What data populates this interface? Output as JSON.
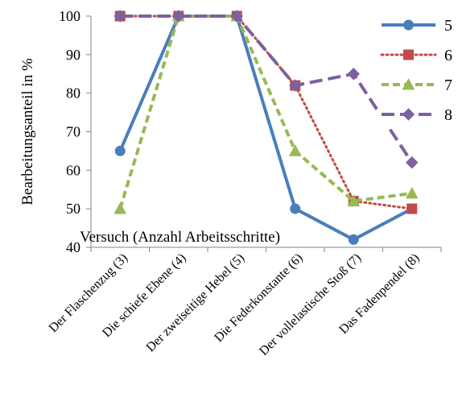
{
  "chart_data": {
    "type": "line",
    "title": "",
    "ylabel": "Bearbeitungsanteil in %",
    "xlabel": "Versuch (Anzahl Arbeitsschritte)",
    "ylim": [
      40,
      100
    ],
    "yticks": [
      40,
      50,
      60,
      70,
      80,
      90,
      100
    ],
    "grid": false,
    "legend_position": "top-right",
    "categories": [
      "Der Flaschenzug (3)",
      "Die schiefe Ebene (4)",
      "Der zweiseitige Hebel (5)",
      "Die Federkonstante (6)",
      "Der vollelastische Stoß (7)",
      "Das Fadenpendel (8)"
    ],
    "series": [
      {
        "name": "5",
        "values": [
          65,
          100,
          100,
          50,
          42,
          50
        ],
        "color": "#4a7ebb",
        "marker": "circle",
        "dash": "solid"
      },
      {
        "name": "6",
        "values": [
          100,
          100,
          100,
          82,
          52,
          50
        ],
        "color": "#be4b48",
        "marker": "square",
        "dash": "dotted"
      },
      {
        "name": "7",
        "values": [
          50,
          100,
          100,
          65,
          52,
          54
        ],
        "color": "#98b954",
        "marker": "triangle",
        "dash": "dashed"
      },
      {
        "name": "8",
        "values": [
          100,
          100,
          100,
          82,
          85,
          62
        ],
        "color": "#7d60a0",
        "marker": "diamond",
        "dash": "longdash"
      }
    ]
  }
}
